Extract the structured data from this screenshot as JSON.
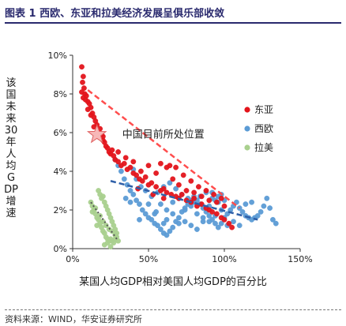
{
  "title": "图表 1 西欧、东亚和拉美经济发展呈俱乐部收敛",
  "source": "资料来源：WIND，华安证券研究所",
  "chart_data": {
    "type": "scatter",
    "ylabel": "该国未来30年人均GDP增速",
    "xlabel": "某国人均GDP相对美国人均GDP的百分比",
    "xlim": [
      0,
      150
    ],
    "ylim": [
      0,
      10
    ],
    "x_ticks": [
      "0%",
      "50%",
      "100%",
      "150%"
    ],
    "y_ticks": [
      "0%",
      "2%",
      "4%",
      "6%",
      "8%",
      "10%"
    ],
    "x_tick_values": [
      0,
      50,
      100,
      150
    ],
    "y_tick_values": [
      0,
      2,
      4,
      6,
      8,
      10
    ],
    "legend_position": "right",
    "annotation": {
      "text": "中国目前所处位置",
      "x": 16,
      "y": 5.9
    },
    "series": [
      {
        "name": "东亚",
        "color": "#e3141b",
        "trend": [
          [
            10,
            8.2
          ],
          [
            110,
            2.1
          ]
        ],
        "points": [
          [
            6,
            9.4
          ],
          [
            7,
            8.9
          ],
          [
            6.5,
            8.6
          ],
          [
            7.5,
            8.3
          ],
          [
            6,
            8.1
          ],
          [
            8,
            8.0
          ],
          [
            7,
            7.8
          ],
          [
            9,
            7.9
          ],
          [
            10,
            7.6
          ],
          [
            8.5,
            7.7
          ],
          [
            11,
            7.5
          ],
          [
            12,
            7.3
          ],
          [
            10,
            7.2
          ],
          [
            13,
            7.0
          ],
          [
            14,
            6.8
          ],
          [
            12,
            6.9
          ],
          [
            15,
            6.6
          ],
          [
            16,
            6.4
          ],
          [
            14,
            6.3
          ],
          [
            18,
            6.2
          ],
          [
            17,
            6.0
          ],
          [
            19,
            5.9
          ],
          [
            20,
            5.6
          ],
          [
            21,
            5.5
          ],
          [
            22,
            5.3
          ],
          [
            23,
            5.2
          ],
          [
            20,
            5.8
          ],
          [
            24,
            5.0
          ],
          [
            25,
            4.9
          ],
          [
            27,
            4.8
          ],
          [
            28,
            4.6
          ],
          [
            26,
            5.1
          ],
          [
            30,
            4.5
          ],
          [
            32,
            4.3
          ],
          [
            34,
            4.4
          ],
          [
            36,
            4.1
          ],
          [
            38,
            4.2
          ],
          [
            40,
            3.9
          ],
          [
            42,
            3.8
          ],
          [
            44,
            3.6
          ],
          [
            46,
            3.5
          ],
          [
            48,
            3.7
          ],
          [
            50,
            3.3
          ],
          [
            52,
            3.4
          ],
          [
            55,
            3.2
          ],
          [
            58,
            3.0
          ],
          [
            60,
            3.1
          ],
          [
            62,
            2.9
          ],
          [
            65,
            2.8
          ],
          [
            68,
            2.7
          ],
          [
            70,
            2.6
          ],
          [
            72,
            2.8
          ],
          [
            75,
            2.5
          ],
          [
            78,
            2.4
          ],
          [
            80,
            2.6
          ],
          [
            82,
            2.2
          ],
          [
            85,
            2.3
          ],
          [
            88,
            2.1
          ],
          [
            90,
            2.0
          ],
          [
            92,
            1.9
          ],
          [
            95,
            1.8
          ],
          [
            98,
            1.6
          ],
          [
            100,
            1.5
          ],
          [
            103,
            1.3
          ],
          [
            105,
            1.1
          ],
          [
            35,
            4.7
          ],
          [
            45,
            4.0
          ],
          [
            55,
            3.9
          ],
          [
            62,
            4.2
          ],
          [
            66,
            3.6
          ],
          [
            70,
            3.3
          ],
          [
            75,
            3.0
          ],
          [
            80,
            2.9
          ],
          [
            85,
            2.7
          ],
          [
            90,
            2.5
          ],
          [
            95,
            2.4
          ],
          [
            100,
            2.2
          ],
          [
            30,
            5.0
          ],
          [
            40,
            4.5
          ],
          [
            50,
            4.3
          ],
          [
            58,
            4.4
          ],
          [
            64,
            4.3
          ],
          [
            68,
            4.2
          ],
          [
            73,
            3.8
          ],
          [
            78,
            3.5
          ],
          [
            83,
            3.2
          ],
          [
            88,
            3.0
          ],
          [
            93,
            2.8
          ],
          [
            98,
            2.6
          ],
          [
            43,
            3.1
          ],
          [
            53,
            2.8
          ],
          [
            60,
            2.6
          ]
        ]
      },
      {
        "name": "西欧",
        "color": "#5b9bd5",
        "trend": [
          [
            25,
            3.5
          ],
          [
            122,
            1.5
          ]
        ],
        "points": [
          [
            28,
            4.6
          ],
          [
            30,
            4.3
          ],
          [
            32,
            4.0
          ],
          [
            34,
            3.6
          ],
          [
            36,
            3.3
          ],
          [
            38,
            3.0
          ],
          [
            40,
            2.8
          ],
          [
            42,
            2.5
          ],
          [
            44,
            2.3
          ],
          [
            46,
            2.0
          ],
          [
            48,
            1.8
          ],
          [
            50,
            1.6
          ],
          [
            52,
            1.5
          ],
          [
            54,
            1.3
          ],
          [
            56,
            1.2
          ],
          [
            58,
            1.0
          ],
          [
            60,
            0.8
          ],
          [
            62,
            0.7
          ],
          [
            64,
            0.9
          ],
          [
            66,
            1.1
          ],
          [
            68,
            1.4
          ],
          [
            70,
            1.6
          ],
          [
            72,
            1.9
          ],
          [
            74,
            2.1
          ],
          [
            76,
            2.3
          ],
          [
            78,
            2.5
          ],
          [
            80,
            2.7
          ],
          [
            82,
            2.5
          ],
          [
            84,
            2.3
          ],
          [
            86,
            2.1
          ],
          [
            88,
            1.9
          ],
          [
            90,
            1.7
          ],
          [
            92,
            1.5
          ],
          [
            94,
            1.3
          ],
          [
            96,
            1.1
          ],
          [
            98,
            1.3
          ],
          [
            100,
            1.6
          ],
          [
            102,
            1.8
          ],
          [
            104,
            2.0
          ],
          [
            106,
            2.2
          ],
          [
            108,
            2.4
          ],
          [
            110,
            2.1
          ],
          [
            112,
            1.9
          ],
          [
            114,
            1.7
          ],
          [
            116,
            1.6
          ],
          [
            118,
            1.5
          ],
          [
            120,
            1.6
          ],
          [
            122,
            1.7
          ],
          [
            124,
            1.9
          ],
          [
            126,
            2.2
          ],
          [
            128,
            2.6
          ],
          [
            130,
            2.1
          ],
          [
            132,
            1.5
          ],
          [
            134,
            1.3
          ],
          [
            48,
            3.0
          ],
          [
            52,
            2.7
          ],
          [
            56,
            2.9
          ],
          [
            60,
            3.2
          ],
          [
            64,
            3.4
          ],
          [
            68,
            3.1
          ],
          [
            72,
            2.8
          ],
          [
            76,
            2.6
          ],
          [
            80,
            2.4
          ],
          [
            84,
            2.7
          ],
          [
            88,
            2.9
          ],
          [
            92,
            2.6
          ],
          [
            96,
            2.4
          ],
          [
            100,
            2.5
          ],
          [
            44,
            1.5
          ],
          [
            50,
            2.3
          ],
          [
            55,
            1.9
          ],
          [
            62,
            1.5
          ],
          [
            66,
            2.4
          ],
          [
            70,
            2.6
          ],
          [
            74,
            1.4
          ],
          [
            78,
            1.2
          ],
          [
            82,
            1.0
          ],
          [
            86,
            1.4
          ],
          [
            90,
            2.2
          ],
          [
            94,
            2.5
          ],
          [
            98,
            2.8
          ],
          [
            102,
            1.2
          ],
          [
            106,
            1.4
          ],
          [
            110,
            1.2
          ],
          [
            114,
            2.3
          ],
          [
            118,
            2.4
          ],
          [
            35,
            2.6
          ],
          [
            38,
            2.4
          ],
          [
            40,
            4.1
          ],
          [
            42,
            3.6
          ],
          [
            45,
            3.2
          ],
          [
            58,
            2.3
          ],
          [
            62,
            2.0
          ],
          [
            66,
            1.8
          ],
          [
            70,
            1.3
          ],
          [
            74,
            2.0
          ],
          [
            78,
            2.2
          ],
          [
            82,
            1.8
          ],
          [
            86,
            1.6
          ],
          [
            90,
            1.4
          ],
          [
            94,
            1.7
          ],
          [
            98,
            2.0
          ],
          [
            54,
            1.8
          ],
          [
            60,
            1.3
          ],
          [
            92,
            2.9
          ],
          [
            96,
            2.7
          ]
        ]
      },
      {
        "name": "拉美",
        "color": "#a9d08e",
        "trend": [
          [
            12,
            2.4
          ],
          [
            30,
            0.4
          ]
        ],
        "points": [
          [
            12,
            2.4
          ],
          [
            13,
            2.2
          ],
          [
            14,
            2.0
          ],
          [
            15,
            1.8
          ],
          [
            16,
            1.6
          ],
          [
            17,
            1.5
          ],
          [
            18,
            1.3
          ],
          [
            19,
            1.1
          ],
          [
            20,
            0.9
          ],
          [
            21,
            0.8
          ],
          [
            22,
            0.6
          ],
          [
            23,
            0.5
          ],
          [
            24,
            0.4
          ],
          [
            25,
            0.5
          ],
          [
            26,
            0.4
          ],
          [
            27,
            0.3
          ],
          [
            28,
            0.5
          ],
          [
            29,
            0.6
          ],
          [
            30,
            0.4
          ],
          [
            17,
            3.0
          ],
          [
            18,
            2.8
          ],
          [
            19,
            2.6
          ],
          [
            20,
            2.7
          ],
          [
            21,
            2.4
          ],
          [
            22,
            2.2
          ],
          [
            23,
            2.0
          ],
          [
            24,
            1.8
          ],
          [
            25,
            1.6
          ],
          [
            26,
            1.4
          ],
          [
            27,
            1.2
          ],
          [
            28,
            1.0
          ],
          [
            29,
            0.8
          ],
          [
            13,
            1.9
          ],
          [
            15,
            2.1
          ],
          [
            16,
            1.2
          ],
          [
            18,
            1.7
          ],
          [
            20,
            1.4
          ],
          [
            22,
            1.2
          ],
          [
            24,
            1.0
          ],
          [
            26,
            0.9
          ],
          [
            28,
            0.7
          ],
          [
            21,
            0.2
          ],
          [
            23,
            0.3
          ],
          [
            25,
            0.1
          ]
        ]
      }
    ]
  }
}
